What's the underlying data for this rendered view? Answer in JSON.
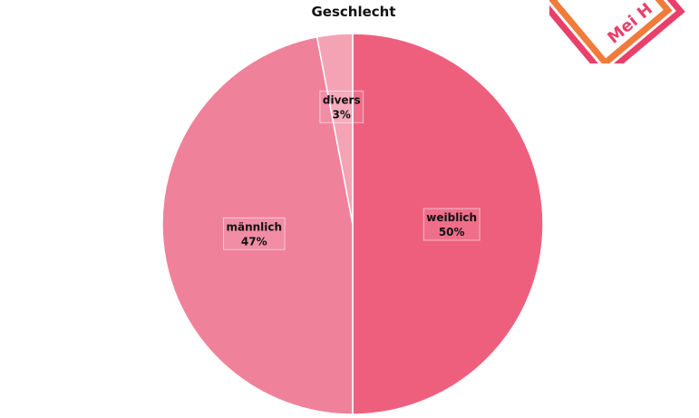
{
  "chart_data": {
    "type": "pie",
    "title": "Geschlecht",
    "start_angle_deg": 0,
    "direction": "clockwise",
    "slices": [
      {
        "label": "weiblich",
        "value": 50,
        "display": "50%",
        "color": "#ee5f7e"
      },
      {
        "label": "männlich",
        "value": 47,
        "display": "47%",
        "color": "#f0819a"
      },
      {
        "label": "divers",
        "value": 3,
        "display": "3%",
        "color": "#f4a3b5"
      }
    ]
  },
  "logo": {
    "text": "Mei H",
    "colors": [
      "#e8406a",
      "#f07b3a"
    ]
  }
}
